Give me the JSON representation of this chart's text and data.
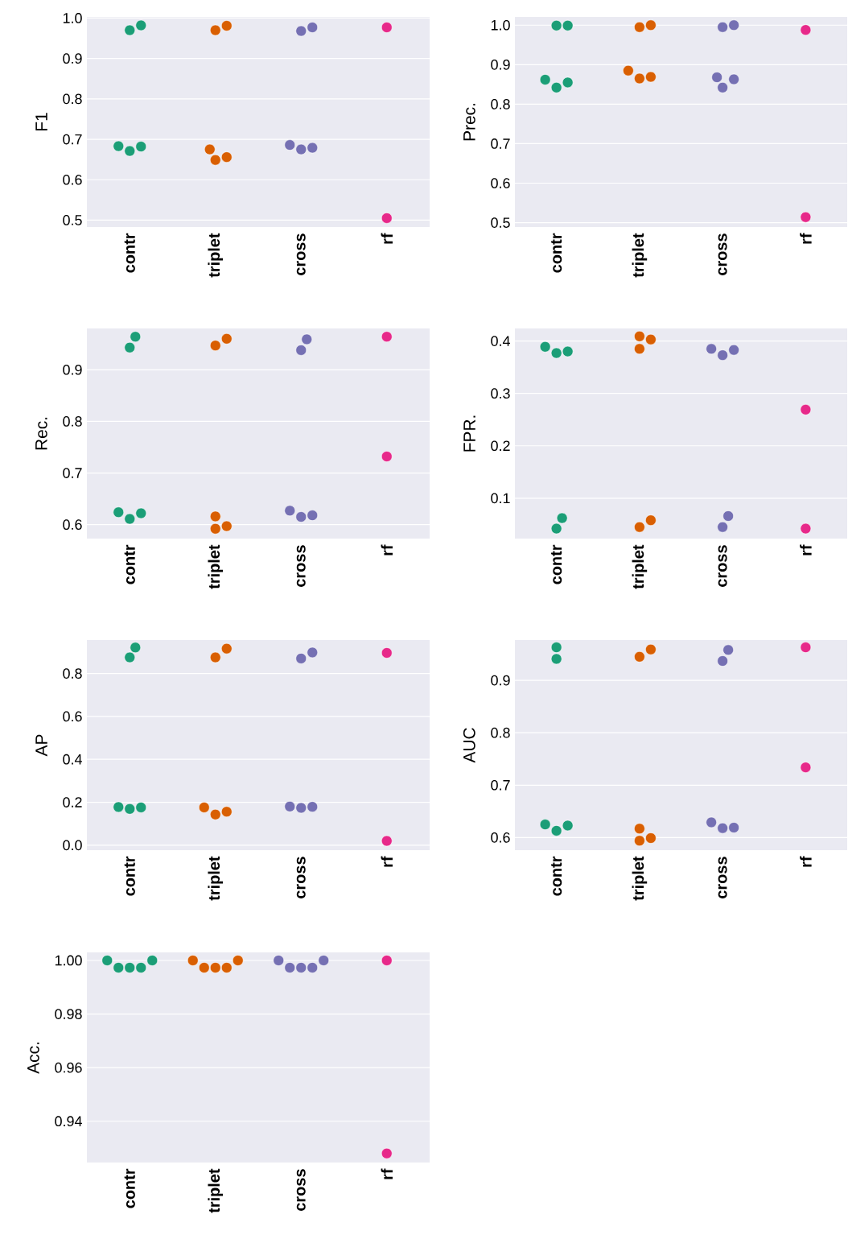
{
  "chart_data": [
    {
      "type": "scatter",
      "ylabel": "F1",
      "categories": [
        "contr",
        "triplet",
        "cross",
        "rf"
      ],
      "ylim": [
        0.483,
        1.003
      ],
      "yticks": [
        0.5,
        0.6,
        0.7,
        0.8,
        0.9,
        {
          "value": 1,
          "label": "1.0"
        }
      ],
      "grid": "y",
      "marker": "circle",
      "series": [
        {
          "color": "#1b9e77",
          "x": [
            "contr",
            "contr",
            "contr",
            "contr",
            "contr"
          ],
          "values": [
            0.982,
            0.97,
            0.682,
            0.671,
            0.683
          ]
        },
        {
          "color": "#d95f02",
          "x": [
            "triplet",
            "triplet",
            "triplet",
            "triplet",
            "triplet"
          ],
          "values": [
            0.981,
            0.97,
            0.675,
            0.656,
            0.649
          ]
        },
        {
          "color": "#7570b3",
          "x": [
            "cross",
            "cross",
            "cross",
            "cross",
            "cross"
          ],
          "values": [
            0.977,
            0.968,
            0.679,
            0.675,
            0.686
          ]
        },
        {
          "color": "#e7298a",
          "x": [
            "rf",
            "rf"
          ],
          "values": [
            0.977,
            0.505
          ]
        }
      ]
    },
    {
      "type": "scatter",
      "ylabel": "Prec.",
      "categories": [
        "contr",
        "triplet",
        "cross",
        "rf"
      ],
      "ylim": [
        0.489,
        1.021
      ],
      "yticks": [
        0.5,
        0.6,
        0.7,
        0.8,
        0.9,
        {
          "value": 1,
          "label": "1.0"
        }
      ],
      "grid": "y",
      "marker": "circle",
      "series": [
        {
          "color": "#1b9e77",
          "x": [
            "contr",
            "contr",
            "contr",
            "contr",
            "contr"
          ],
          "values": [
            0.999,
            0.999,
            0.855,
            0.842,
            0.862
          ]
        },
        {
          "color": "#d95f02",
          "x": [
            "triplet",
            "triplet",
            "triplet",
            "triplet",
            "triplet"
          ],
          "values": [
            1.0,
            0.995,
            0.869,
            0.865,
            0.885
          ]
        },
        {
          "color": "#7570b3",
          "x": [
            "cross",
            "cross",
            "cross",
            "cross",
            "cross"
          ],
          "values": [
            1.0,
            0.995,
            0.863,
            0.868,
            0.842
          ]
        },
        {
          "color": "#e7298a",
          "x": [
            "rf",
            "rf"
          ],
          "values": [
            0.988,
            0.514
          ]
        }
      ]
    },
    {
      "type": "scatter",
      "ylabel": "Rec.",
      "categories": [
        "contr",
        "triplet",
        "cross",
        "rf"
      ],
      "ylim": [
        0.573,
        0.98
      ],
      "yticks": [
        0.6,
        0.7,
        0.8,
        0.9
      ],
      "grid": "y",
      "marker": "circle",
      "series": [
        {
          "color": "#1b9e77",
          "x": [
            "contr",
            "contr",
            "contr",
            "contr",
            "contr"
          ],
          "values": [
            0.964,
            0.943,
            0.622,
            0.611,
            0.624
          ]
        },
        {
          "color": "#d95f02",
          "x": [
            "triplet",
            "triplet",
            "triplet",
            "triplet",
            "triplet"
          ],
          "values": [
            0.96,
            0.947,
            0.597,
            0.592,
            0.616
          ]
        },
        {
          "color": "#7570b3",
          "x": [
            "cross",
            "cross",
            "cross",
            "cross",
            "cross"
          ],
          "values": [
            0.959,
            0.938,
            0.618,
            0.615,
            0.627
          ]
        },
        {
          "color": "#e7298a",
          "x": [
            "rf",
            "rf"
          ],
          "values": [
            0.964,
            0.732
          ]
        }
      ]
    },
    {
      "type": "scatter",
      "ylabel": "FPR.",
      "categories": [
        "contr",
        "triplet",
        "cross",
        "rf"
      ],
      "ylim": [
        0.023,
        0.424
      ],
      "yticks": [
        0.1,
        0.2,
        0.3,
        0.4
      ],
      "grid": "y",
      "marker": "circle",
      "series": [
        {
          "color": "#1b9e77",
          "x": [
            "contr",
            "contr",
            "contr",
            "contr",
            "contr"
          ],
          "values": [
            0.38,
            0.377,
            0.389,
            0.062,
            0.042
          ]
        },
        {
          "color": "#d95f02",
          "x": [
            "triplet",
            "triplet",
            "triplet",
            "triplet",
            "triplet"
          ],
          "values": [
            0.409,
            0.403,
            0.385,
            0.058,
            0.045
          ]
        },
        {
          "color": "#7570b3",
          "x": [
            "cross",
            "cross",
            "cross",
            "cross",
            "cross"
          ],
          "values": [
            0.383,
            0.373,
            0.385,
            0.066,
            0.045
          ]
        },
        {
          "color": "#e7298a",
          "x": [
            "rf",
            "rf"
          ],
          "values": [
            0.269,
            0.042
          ]
        }
      ]
    },
    {
      "type": "scatter",
      "ylabel": "AP",
      "categories": [
        "contr",
        "triplet",
        "cross",
        "rf"
      ],
      "ylim": [
        -0.023,
        0.956
      ],
      "yticks": [
        {
          "value": 0,
          "label": "0.0"
        },
        0.2,
        0.4,
        0.6,
        0.8
      ],
      "grid": "y",
      "marker": "circle",
      "series": [
        {
          "color": "#1b9e77",
          "x": [
            "contr",
            "contr",
            "contr",
            "contr",
            "contr"
          ],
          "values": [
            0.921,
            0.875,
            0.176,
            0.169,
            0.178
          ]
        },
        {
          "color": "#d95f02",
          "x": [
            "triplet",
            "triplet",
            "triplet",
            "triplet",
            "triplet"
          ],
          "values": [
            0.916,
            0.875,
            0.156,
            0.143,
            0.176
          ]
        },
        {
          "color": "#7570b3",
          "x": [
            "cross",
            "cross",
            "cross",
            "cross",
            "cross"
          ],
          "values": [
            0.898,
            0.87,
            0.179,
            0.174,
            0.18
          ]
        },
        {
          "color": "#e7298a",
          "x": [
            "rf",
            "rf"
          ],
          "values": [
            0.896,
            0.02
          ]
        }
      ]
    },
    {
      "type": "scatter",
      "ylabel": "AUC",
      "categories": [
        "contr",
        "triplet",
        "cross",
        "rf"
      ],
      "ylim": [
        0.576,
        0.977
      ],
      "yticks": [
        0.6,
        0.7,
        0.8,
        0.9
      ],
      "grid": "y",
      "marker": "circle",
      "series": [
        {
          "color": "#1b9e77",
          "x": [
            "contr",
            "contr",
            "contr",
            "contr",
            "contr"
          ],
          "values": [
            0.963,
            0.941,
            0.623,
            0.613,
            0.625
          ]
        },
        {
          "color": "#d95f02",
          "x": [
            "triplet",
            "triplet",
            "triplet",
            "triplet",
            "triplet"
          ],
          "values": [
            0.959,
            0.945,
            0.599,
            0.594,
            0.617
          ]
        },
        {
          "color": "#7570b3",
          "x": [
            "cross",
            "cross",
            "cross",
            "cross",
            "cross"
          ],
          "values": [
            0.958,
            0.937,
            0.619,
            0.618,
            0.629
          ]
        },
        {
          "color": "#e7298a",
          "x": [
            "rf",
            "rf"
          ],
          "values": [
            0.963,
            0.734
          ]
        }
      ]
    },
    {
      "type": "scatter",
      "ylabel": "Acc.",
      "categories": [
        "contr",
        "triplet",
        "cross",
        "rf"
      ],
      "ylim": [
        0.9246,
        1.003
      ],
      "yticks": [
        {
          "value": 0.94,
          "label": "0.94"
        },
        {
          "value": 0.96,
          "label": "0.96"
        },
        {
          "value": 0.98,
          "label": "0.98"
        },
        {
          "value": 1.0,
          "label": "1.00"
        }
      ],
      "grid": "y",
      "marker": "circle",
      "series": [
        {
          "color": "#1b9e77",
          "x": [
            "contr",
            "contr",
            "contr",
            "contr",
            "contr"
          ],
          "values": [
            1.0,
            1.0,
            0.9973,
            0.9973,
            0.9973
          ]
        },
        {
          "color": "#d95f02",
          "x": [
            "triplet",
            "triplet",
            "triplet",
            "triplet",
            "triplet"
          ],
          "values": [
            1.0,
            1.0,
            0.9973,
            0.9973,
            0.9973
          ]
        },
        {
          "color": "#7570b3",
          "x": [
            "cross",
            "cross",
            "cross",
            "cross",
            "cross"
          ],
          "values": [
            1.0,
            1.0,
            0.9973,
            0.9973,
            0.9973
          ]
        },
        {
          "color": "#e7298a",
          "x": [
            "rf",
            "rf"
          ],
          "values": [
            1.0,
            0.928
          ]
        }
      ]
    }
  ]
}
